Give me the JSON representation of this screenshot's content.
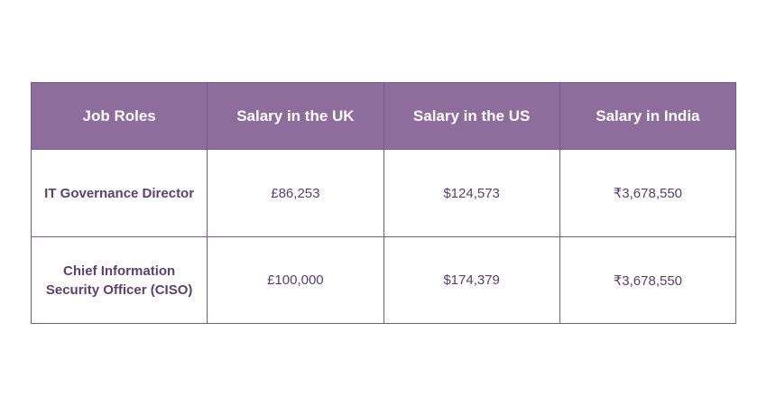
{
  "table": {
    "headers": [
      "Job Roles",
      "Salary in the UK",
      "Salary in the US",
      "Salary in India"
    ],
    "rows": [
      {
        "role": "IT Governance Director",
        "uk": "£86,253",
        "us": "$124,573",
        "india": "₹3,678,550"
      },
      {
        "role": "Chief Information Security Officer (CISO)",
        "uk": "£100,000",
        "us": "$174,379",
        "india": "₹3,678,550"
      }
    ]
  },
  "colors": {
    "header_bg": "#8e6c9c",
    "header_text": "#ffffff",
    "border": "#7a5a8c",
    "body_text": "#5a3d6b"
  }
}
